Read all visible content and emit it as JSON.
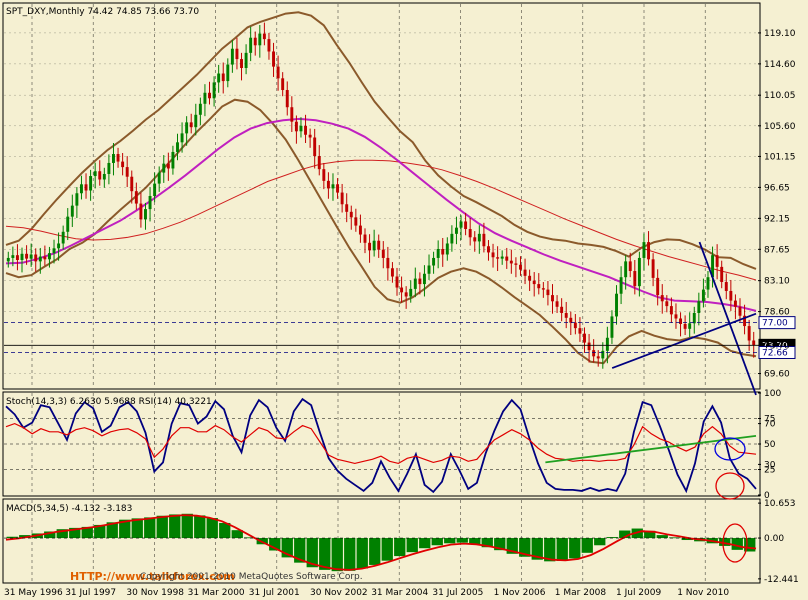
{
  "main_header": "SPT_DXY,Monthly  74.42 74.85 73.66 73.70",
  "stoch_header": "Stoch(14,3,3) 6.2630 5.9688  RSI(14) 40.3221",
  "macd_header": "MACD(5,34,5) -4.132 -3.183",
  "watermark": "HTTP://www.talkforex.com",
  "footer_note": "Copyright 2001-2010 MetaQuotes Software Corp.",
  "colors": {
    "background": "#f5f0d2",
    "bull": "#008000",
    "bear": "#c00000",
    "bollinger": "#8b5a2b",
    "ma_long": "#d02020",
    "ma_mid": "#c020c0",
    "trend_blue": "#000080",
    "trend_green": "#20a020",
    "macd_bar": "#008000",
    "macd_signal": "#e00000"
  },
  "chart_data": [
    {
      "name": "price",
      "type": "candlestick",
      "ylim": [
        67.5,
        123.3
      ],
      "y_ticks": [
        "119.10",
        "114.60",
        "110.05",
        "105.60",
        "101.15",
        "96.65",
        "92.15",
        "87.65",
        "83.10",
        "78.60",
        "73.70",
        "69.60"
      ],
      "price_markers": [
        {
          "value": 77.0,
          "label": "77.00",
          "color": "#000080"
        },
        {
          "value": 73.7,
          "label": "73.70",
          "color": "#000000"
        },
        {
          "value": 72.66,
          "label": "72.66",
          "color": "#000080"
        }
      ],
      "x_labels": [
        "31 May 1996",
        "31 Jul 1997",
        "30 Nov 1998",
        "31 Mar 2000",
        "31 Jul 2001",
        "30 Nov 2002",
        "31 Mar 2004",
        "31 Jul 2005",
        "1 Nov 2006",
        "1 Mar 2008",
        "1 Jul 2009",
        "1 Nov 2010"
      ],
      "close": [
        86.4,
        86.8,
        86.1,
        87.0,
        86.3,
        86.9,
        85.9,
        86.6,
        86.2,
        87.1,
        87.8,
        88.5,
        90.2,
        92.4,
        94.0,
        95.8,
        97.1,
        96.2,
        98.3,
        99.0,
        97.8,
        98.6,
        100.2,
        101.5,
        100.4,
        99.6,
        98.2,
        96.1,
        94.3,
        92.0,
        93.5,
        95.4,
        97.2,
        98.8,
        100.1,
        99.4,
        101.8,
        103.2,
        104.5,
        106.1,
        105.4,
        107.2,
        108.8,
        110.4,
        109.6,
        111.9,
        113.2,
        112.1,
        114.5,
        116.8,
        115.3,
        114.0,
        116.2,
        118.4,
        117.3,
        119.0,
        118.2,
        116.4,
        114.2,
        112.5,
        110.8,
        108.3,
        106.2,
        104.8,
        105.6,
        104.3,
        103.9,
        101.2,
        99.3,
        97.6,
        96.5,
        97.1,
        95.9,
        94.2,
        93.1,
        92.3,
        91.1,
        89.8,
        88.6,
        87.5,
        88.9,
        87.6,
        86.4,
        84.9,
        83.7,
        82.1,
        81.4,
        80.8,
        81.9,
        83.4,
        82.6,
        84.1,
        85.3,
        86.4,
        87.7,
        86.9,
        88.5,
        89.9,
        90.8,
        91.7,
        90.6,
        89.4,
        88.8,
        89.9,
        88.1,
        87.2,
        86.5,
        86.3,
        86.6,
        86.0,
        85.6,
        85.4,
        84.7,
        83.8,
        83.1,
        82.6,
        82.0,
        81.8,
        81.0,
        80.1,
        79.3,
        78.4,
        77.7,
        77.0,
        76.2,
        75.4,
        74.1,
        73.0,
        72.1,
        71.8,
        72.9,
        74.8,
        77.9,
        81.2,
        83.6,
        85.9,
        84.5,
        82.3,
        86.4,
        88.7,
        86.2,
        83.5,
        81.0,
        80.1,
        79.4,
        78.2,
        77.6,
        76.8,
        76.1,
        76.9,
        78.4,
        80.1,
        81.8,
        83.6,
        86.8,
        85.1,
        82.9,
        81.6,
        80.2,
        79.3,
        78.0,
        76.5,
        74.4,
        73.7
      ],
      "bollinger_upper": [
        88.3,
        88.9,
        90.6,
        92.8,
        94.9,
        96.9,
        98.8,
        100.5,
        102.1,
        103.4,
        104.9,
        106.5,
        107.9,
        109.6,
        111.3,
        113.0,
        114.9,
        116.8,
        118.3,
        119.9,
        120.7,
        121.3,
        121.9,
        122.1,
        121.6,
        120.2,
        117.4,
        114.8,
        111.9,
        109.1,
        106.9,
        104.8,
        103.2,
        100.5,
        98.4,
        96.8,
        95.4,
        94.5,
        93.5,
        92.5,
        91.2,
        90.2,
        89.5,
        89.1,
        88.9,
        88.5,
        88.3,
        88.0,
        87.4,
        86.6,
        87.9,
        88.7,
        89.1,
        89.0,
        88.4,
        87.6,
        86.5,
        86.4,
        85.5,
        84.8
      ],
      "bollinger_lower": [
        84.2,
        83.6,
        83.9,
        85.1,
        86.2,
        87.7,
        88.6,
        89.9,
        91.7,
        93.4,
        95.0,
        96.6,
        98.6,
        100.6,
        102.7,
        104.7,
        106.5,
        108.4,
        109.4,
        109.1,
        107.9,
        105.9,
        103.6,
        100.6,
        97.4,
        94.2,
        91.0,
        87.9,
        85.1,
        82.2,
        80.4,
        79.9,
        80.7,
        82.0,
        83.5,
        84.4,
        84.9,
        84.4,
        83.4,
        82.1,
        80.7,
        79.4,
        78.1,
        76.4,
        74.6,
        72.6,
        71.3,
        71.1,
        73.4,
        75.0,
        75.8,
        75.1,
        74.6,
        74.4,
        74.9,
        74.6,
        74.1,
        72.9,
        72.4,
        72.1
      ],
      "ma_mid": [
        85.6,
        85.7,
        86.3,
        87.1,
        88.2,
        89.4,
        90.6,
        91.8,
        93.3,
        94.9,
        96.6,
        98.4,
        100.3,
        102.2,
        103.9,
        105.2,
        106.0,
        106.4,
        106.6,
        106.4,
        105.9,
        105.2,
        104.0,
        102.4,
        100.6,
        98.7,
        96.8,
        94.9,
        93.1,
        91.4,
        90.0,
        88.9,
        87.9,
        86.9,
        86.0,
        85.2,
        84.4,
        83.6,
        82.6,
        81.6,
        80.7,
        80.2,
        80.1,
        80.0,
        79.7,
        79.3,
        78.7
      ],
      "ma_long": [
        91.0,
        90.8,
        90.3,
        89.7,
        89.2,
        89.0,
        89.1,
        89.4,
        89.9,
        90.7,
        91.6,
        92.7,
        93.9,
        95.1,
        96.3,
        97.5,
        98.4,
        99.3,
        100.0,
        100.4,
        100.6,
        100.6,
        100.5,
        100.2,
        99.8,
        99.2,
        98.4,
        97.5,
        96.5,
        95.4,
        94.3,
        93.2,
        92.1,
        91.1,
        90.1,
        89.1,
        88.2,
        87.4,
        86.6,
        85.9,
        85.2,
        84.5,
        83.9,
        83.2
      ],
      "trendlines": [
        {
          "name": "support",
          "from": [
            2008.2,
            70.4
          ],
          "to": [
            2011.0,
            78.3
          ],
          "color": "#000080"
        },
        {
          "name": "resistance",
          "from": [
            2009.9,
            88.7
          ],
          "to": [
            2011.0,
            66.5
          ],
          "color": "#000080"
        }
      ]
    },
    {
      "name": "stochastic_rsi",
      "type": "line",
      "ylim": [
        0,
        100
      ],
      "y_ticks": [
        "100",
        "75",
        "70",
        "50",
        "30",
        "25",
        "0"
      ],
      "series": [
        {
          "name": "Stoch(14,3,3)",
          "color": "#000080",
          "values": [
            87,
            79,
            66,
            71,
            88,
            86,
            70,
            54,
            80,
            91,
            85,
            62,
            68,
            86,
            91,
            82,
            61,
            23,
            32,
            70,
            90,
            88,
            70,
            77,
            92,
            84,
            58,
            42,
            78,
            93,
            86,
            66,
            53,
            82,
            94,
            88,
            61,
            36,
            24,
            16,
            10,
            4,
            12,
            33,
            17,
            4,
            21,
            40,
            10,
            3,
            13,
            40,
            24,
            6,
            12,
            41,
            63,
            82,
            93,
            84,
            56,
            31,
            12,
            6,
            5,
            5,
            4,
            7,
            4,
            6,
            4,
            21,
            62,
            91,
            88,
            67,
            44,
            20,
            4,
            31,
            72,
            87,
            71,
            36,
            21,
            16,
            6
          ]
        },
        {
          "name": "RSI(14)",
          "color": "#e00000",
          "values": [
            67,
            70,
            66,
            60,
            65,
            62,
            62,
            59,
            64,
            66,
            63,
            58,
            62,
            64,
            65,
            61,
            55,
            37,
            45,
            58,
            66,
            66,
            62,
            62,
            68,
            64,
            57,
            52,
            59,
            66,
            63,
            56,
            55,
            62,
            68,
            65,
            52,
            39,
            35,
            33,
            31,
            33,
            35,
            38,
            33,
            31,
            36,
            38,
            35,
            32,
            34,
            38,
            37,
            33,
            35,
            45,
            54,
            59,
            64,
            60,
            54,
            46,
            40,
            36,
            35,
            33,
            34,
            34,
            33,
            34,
            34,
            36,
            49,
            67,
            60,
            55,
            52,
            47,
            43,
            47,
            60,
            67,
            60,
            48,
            42,
            41,
            40
          ]
        }
      ],
      "trendlines": [
        {
          "name": "rsi-trend",
          "from": [
            2006.9,
            32
          ],
          "to": [
            2011.0,
            58
          ],
          "color": "#20a020"
        }
      ]
    },
    {
      "name": "macd",
      "type": "bar",
      "ylim": [
        -13.4,
        11.6
      ],
      "y_ticks": [
        "10.653",
        "0.00",
        "-12.441"
      ],
      "series": [
        {
          "name": "MACD(5,34,5)",
          "color": "#008000",
          "values": [
            0.4,
            0.9,
            1.4,
            2.0,
            2.7,
            3.1,
            3.4,
            4.0,
            4.8,
            5.6,
            6.0,
            6.3,
            6.8,
            7.2,
            7.4,
            6.9,
            6.1,
            4.6,
            2.4,
            0.2,
            -1.9,
            -3.8,
            -5.9,
            -7.5,
            -8.9,
            -9.7,
            -10.1,
            -10.0,
            -9.3,
            -8.2,
            -6.9,
            -5.5,
            -4.3,
            -3.1,
            -2.2,
            -1.6,
            -1.4,
            -1.9,
            -2.8,
            -3.7,
            -4.8,
            -5.7,
            -6.6,
            -7.1,
            -7.0,
            -6.2,
            -4.5,
            -2.2,
            0.3,
            2.3,
            2.9,
            2.2,
            0.9,
            0.2,
            -0.6,
            -1.0,
            -1.6,
            -2.4,
            -3.6,
            -4.1
          ]
        },
        {
          "name": "Signal",
          "color": "#e00000",
          "values": [
            -0.5,
            -0.1,
            0.5,
            1.2,
            1.9,
            2.4,
            2.9,
            3.4,
            4.1,
            4.8,
            5.4,
            5.8,
            6.3,
            6.7,
            7.0,
            6.8,
            6.2,
            5.1,
            3.3,
            1.2,
            -0.9,
            -2.8,
            -4.7,
            -6.4,
            -7.8,
            -8.8,
            -9.5,
            -9.7,
            -9.3,
            -8.5,
            -7.4,
            -6.1,
            -4.9,
            -3.8,
            -2.8,
            -2.0,
            -1.7,
            -1.9,
            -2.5,
            -3.3,
            -4.2,
            -5.1,
            -5.9,
            -6.6,
            -6.8,
            -6.4,
            -5.2,
            -3.3,
            -1.1,
            1.0,
            2.1,
            1.9,
            1.1,
            0.5,
            -0.2,
            -0.6,
            -1.2,
            -1.9,
            -2.8,
            -3.2
          ]
        }
      ]
    }
  ]
}
